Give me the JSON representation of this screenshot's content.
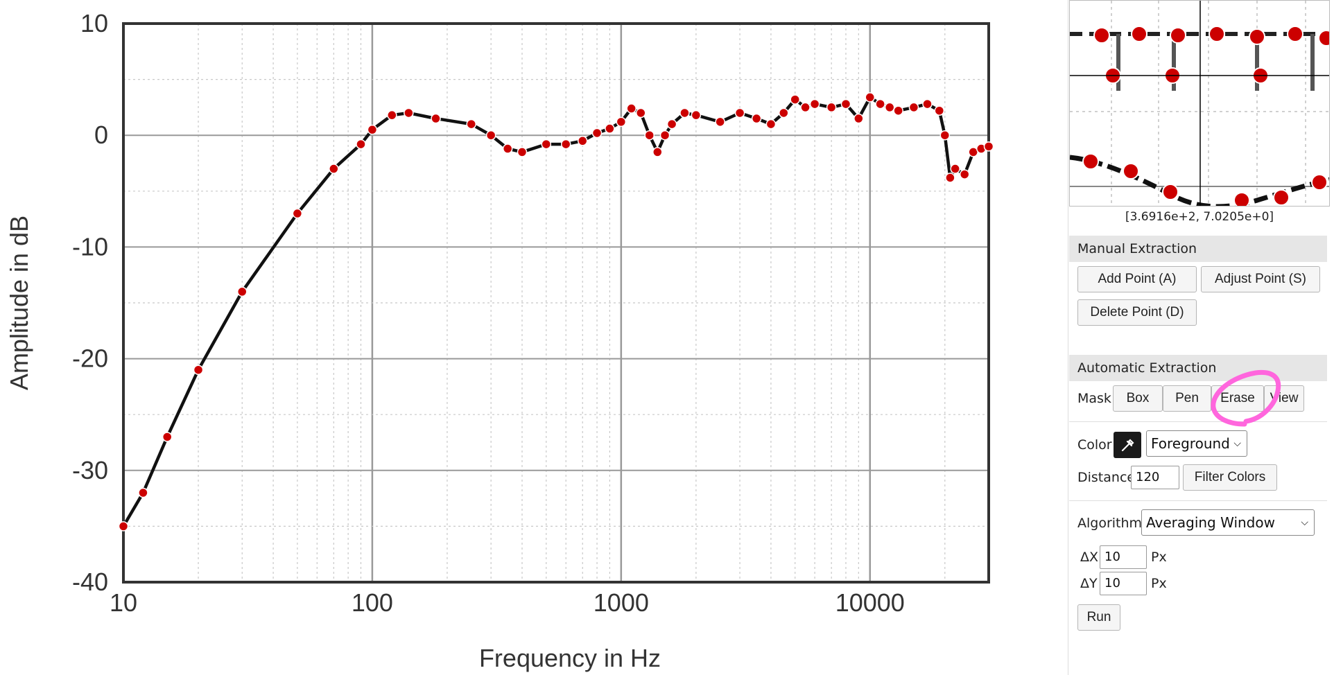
{
  "chart_data": {
    "type": "line",
    "xlabel": "Frequency in Hz",
    "ylabel": "Amplitude in dB",
    "x_scale": "log",
    "xlim": [
      10,
      30000
    ],
    "ylim": [
      -40,
      10
    ],
    "x_ticks": [
      "10",
      "100",
      "1000",
      "10000"
    ],
    "y_ticks": [
      "10",
      "0",
      "-10",
      "-20",
      "-30",
      "-40"
    ],
    "grid": true,
    "series": [
      {
        "x": [
          10,
          12,
          15,
          20,
          30,
          50,
          70,
          90,
          100,
          120,
          140,
          180,
          250,
          300,
          350,
          400,
          500,
          600,
          700,
          800,
          900,
          1000,
          1100,
          1200,
          1300,
          1400,
          1500,
          1600,
          1800,
          2000,
          2500,
          3000,
          3500,
          4000,
          4500,
          5000,
          5500,
          6000,
          7000,
          8000,
          9000,
          10000,
          11000,
          12000,
          13000,
          15000,
          17000,
          19000,
          20000,
          21000,
          22000,
          24000,
          26000,
          28000,
          30000
        ],
        "y": [
          -35,
          -32,
          -27,
          -21,
          -14,
          -7,
          -3,
          -0.8,
          0.5,
          1.8,
          2,
          1.5,
          1,
          0,
          -1.2,
          -1.5,
          -0.8,
          -0.8,
          -0.5,
          0.2,
          0.6,
          1.2,
          2.4,
          2,
          0,
          -1.5,
          0,
          1,
          2,
          1.8,
          1.2,
          2,
          1.5,
          1,
          2,
          3.2,
          2.5,
          2.8,
          2.5,
          2.8,
          1.5,
          3.4,
          2.8,
          2.5,
          2.2,
          2.5,
          2.8,
          2.2,
          0,
          -3.8,
          -3,
          -3.5,
          -1.5,
          -1.2,
          -1
        ]
      }
    ]
  },
  "zoom": {
    "coords": "[3.6916e+2, 7.0205e+0]"
  },
  "manual_extraction": {
    "header": "Manual Extraction",
    "add_point": "Add Point (A)",
    "adjust_point": "Adjust Point (S)",
    "delete_point": "Delete Point (D)"
  },
  "automatic_extraction": {
    "header": "Automatic Extraction",
    "mask_label": "Mask",
    "mask_box": "Box",
    "mask_pen": "Pen",
    "mask_erase": "Erase",
    "mask_view": "View",
    "color_label": "Color",
    "color_mode": "Foreground",
    "color_swatch": "#1a1a1a",
    "distance_label": "Distance",
    "distance_value": "120",
    "filter_colors": "Filter Colors",
    "algorithm_label": "Algorithm",
    "algorithm_value": "Averaging Window",
    "dx_label": "ΔX",
    "dx_value": "10",
    "dy_label": "ΔY",
    "dy_value": "10",
    "px_unit": "Px",
    "run": "Run"
  },
  "colors": {
    "point": "#cc0000",
    "curve": "#111111",
    "annotation": "#ff66dd"
  }
}
